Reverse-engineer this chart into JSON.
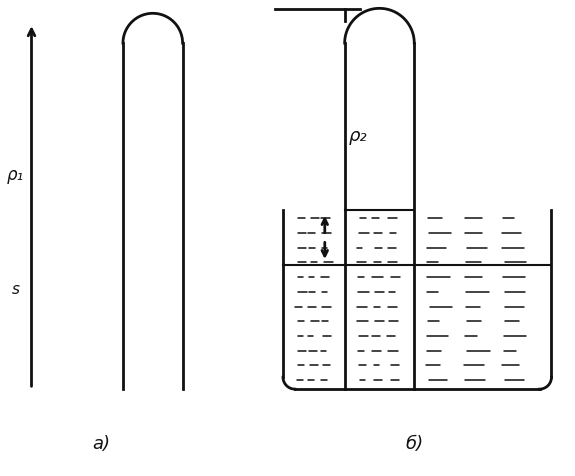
{
  "bg_color": "#ffffff",
  "line_color": "#111111",
  "label_a": "a)",
  "label_b": "б)",
  "label_rho1": "ρ₁",
  "label_rho2": "ρ₂",
  "label_s": "s",
  "fig_w": 5.75,
  "fig_h": 4.76,
  "dpi": 100
}
